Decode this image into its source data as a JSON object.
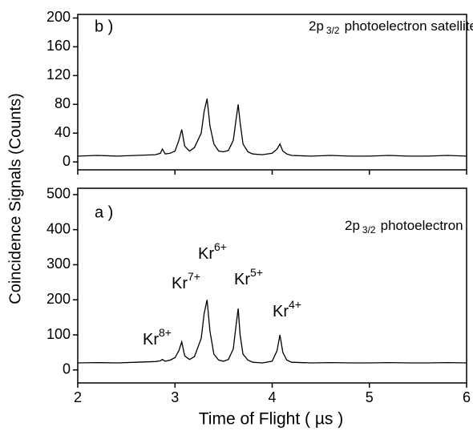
{
  "chart_data": [
    {
      "type": "line",
      "panel_label": "b )",
      "annotation": {
        "text": "2p",
        "sub": "3/2",
        "rest": "photoelectron satellites"
      },
      "x": [
        2.0,
        2.2,
        2.4,
        2.6,
        2.8,
        2.85,
        2.87,
        2.9,
        2.95,
        3.0,
        3.04,
        3.07,
        3.1,
        3.15,
        3.2,
        3.27,
        3.3,
        3.33,
        3.36,
        3.4,
        3.45,
        3.5,
        3.55,
        3.6,
        3.63,
        3.65,
        3.67,
        3.7,
        3.75,
        3.8,
        3.9,
        4.0,
        4.05,
        4.08,
        4.11,
        4.15,
        4.2,
        4.4,
        4.6,
        4.8,
        5.0,
        5.2,
        5.4,
        5.6,
        5.8,
        6.0
      ],
      "values": [
        8,
        9,
        8,
        9,
        10,
        12,
        18,
        11,
        12,
        15,
        30,
        45,
        22,
        15,
        20,
        40,
        70,
        88,
        50,
        25,
        15,
        14,
        16,
        30,
        60,
        80,
        55,
        25,
        14,
        11,
        10,
        12,
        18,
        25,
        15,
        11,
        9,
        8,
        9,
        8,
        8,
        9,
        8,
        8,
        9,
        8
      ],
      "color": "#000000",
      "xlim": [
        2,
        6
      ],
      "xticks": [
        2,
        3,
        4,
        5,
        6
      ],
      "ylim": [
        -11,
        205
      ],
      "yticks": [
        0,
        40,
        80,
        120,
        160,
        200
      ]
    },
    {
      "type": "line",
      "panel_label": "a )",
      "annotation": {
        "text": "2p",
        "sub": "3/2",
        "rest": "photoelectron"
      },
      "ion_labels": [
        {
          "text": "Kr",
          "sup": "8+"
        },
        {
          "text": "Kr",
          "sup": "7+"
        },
        {
          "text": "Kr",
          "sup": "6+"
        },
        {
          "text": "Kr",
          "sup": "5+"
        },
        {
          "text": "Kr",
          "sup": "4+"
        }
      ],
      "x": [
        2.0,
        2.2,
        2.4,
        2.6,
        2.8,
        2.85,
        2.87,
        2.9,
        2.95,
        3.0,
        3.04,
        3.07,
        3.1,
        3.15,
        3.2,
        3.27,
        3.3,
        3.33,
        3.36,
        3.4,
        3.45,
        3.5,
        3.55,
        3.6,
        3.63,
        3.65,
        3.67,
        3.7,
        3.75,
        3.8,
        3.9,
        4.0,
        4.05,
        4.08,
        4.11,
        4.15,
        4.2,
        4.4,
        4.6,
        4.8,
        5.0,
        5.2,
        5.4,
        5.6,
        5.8,
        6.0
      ],
      "values": [
        20,
        21,
        20,
        22,
        24,
        26,
        30,
        25,
        28,
        35,
        55,
        80,
        40,
        30,
        38,
        90,
        160,
        200,
        110,
        45,
        28,
        25,
        30,
        60,
        130,
        175,
        100,
        45,
        28,
        22,
        20,
        25,
        55,
        100,
        50,
        28,
        22,
        20,
        21,
        20,
        20,
        21,
        20,
        20,
        21,
        20
      ],
      "color": "#000000",
      "xlim": [
        2,
        6
      ],
      "xticks": [
        2,
        3,
        4,
        5,
        6
      ],
      "ylim": [
        -37,
        518
      ],
      "yticks": [
        0,
        100,
        200,
        300,
        400,
        500
      ],
      "xlabel": "Time of Flight  ( µs )",
      "ylabel": "Coincidence Signals (Counts)"
    }
  ]
}
